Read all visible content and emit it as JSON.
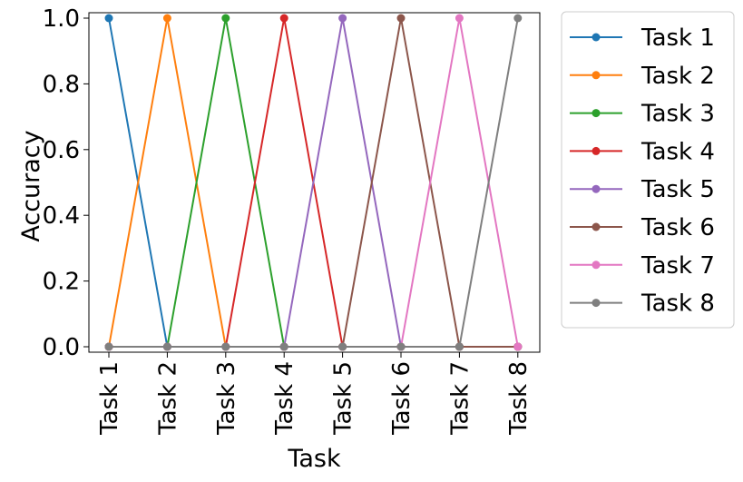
{
  "chart_data": {
    "type": "line",
    "title": "",
    "xlabel": "Task",
    "ylabel": "Accuracy",
    "ylim": [
      0.0,
      1.0
    ],
    "categories": [
      "Task 1",
      "Task 2",
      "Task 3",
      "Task 4",
      "Task 5",
      "Task 6",
      "Task 7",
      "Task 8"
    ],
    "yticks": [
      "0.0",
      "0.2",
      "0.4",
      "0.6",
      "0.8",
      "1.0"
    ],
    "grid": false,
    "legend_position": "outside-right",
    "series": [
      {
        "name": "Task 1",
        "color": "#1f77b4",
        "values": [
          1,
          0,
          0,
          0,
          0,
          0,
          0,
          0
        ]
      },
      {
        "name": "Task 2",
        "color": "#ff7f0e",
        "values": [
          0,
          1,
          0,
          0,
          0,
          0,
          0,
          0
        ]
      },
      {
        "name": "Task 3",
        "color": "#2ca02c",
        "values": [
          0,
          0,
          1,
          0,
          0,
          0,
          0,
          0
        ]
      },
      {
        "name": "Task 4",
        "color": "#d62728",
        "values": [
          0,
          0,
          0,
          1,
          0,
          0,
          0,
          0
        ]
      },
      {
        "name": "Task 5",
        "color": "#9467bd",
        "values": [
          0,
          0,
          0,
          0,
          1,
          0,
          0,
          0
        ]
      },
      {
        "name": "Task 6",
        "color": "#8c564b",
        "values": [
          0,
          0,
          0,
          0,
          0,
          1,
          0,
          0
        ]
      },
      {
        "name": "Task 7",
        "color": "#e377c2",
        "values": [
          0,
          0,
          0,
          0,
          0,
          0,
          1,
          0
        ]
      },
      {
        "name": "Task 8",
        "color": "#7f7f7f",
        "values": [
          0,
          0,
          0,
          0,
          0,
          0,
          0,
          1
        ]
      }
    ]
  }
}
